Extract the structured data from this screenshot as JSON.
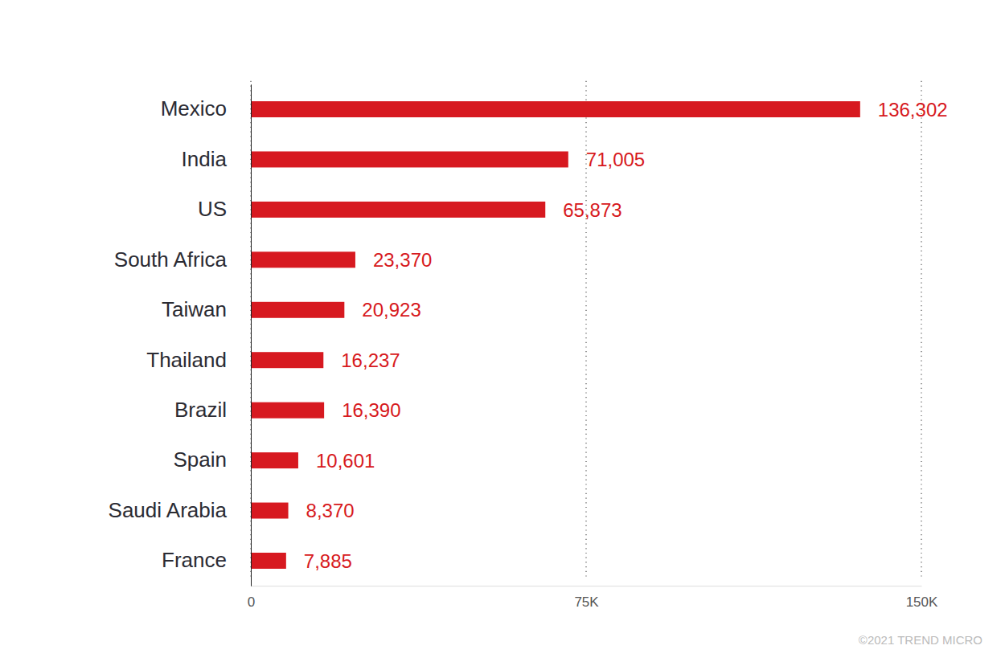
{
  "chart_data": {
    "type": "bar",
    "orientation": "horizontal",
    "categories": [
      "Mexico",
      "India",
      "US",
      "South Africa",
      "Taiwan",
      "Thailand",
      "Brazil",
      "Spain",
      "Saudi Arabia",
      "France"
    ],
    "values": [
      136302,
      71005,
      65873,
      23370,
      20923,
      16237,
      16390,
      10601,
      8370,
      7885
    ],
    "value_labels": [
      "136,302",
      "71,005",
      "65,873",
      "23,370",
      "20,923",
      "16,237",
      "16,390",
      "10,601",
      "8,370",
      "7,885"
    ],
    "color": "#d71920",
    "xlim": [
      0,
      150000
    ],
    "xticks": [
      0,
      {
        "value": 75000,
        "label": "75K"
      },
      {
        "value": 150000,
        "label": "150K"
      }
    ],
    "grid": true,
    "data_labels": true,
    "annotations": [
      "©2021 TREND MICRO"
    ]
  }
}
